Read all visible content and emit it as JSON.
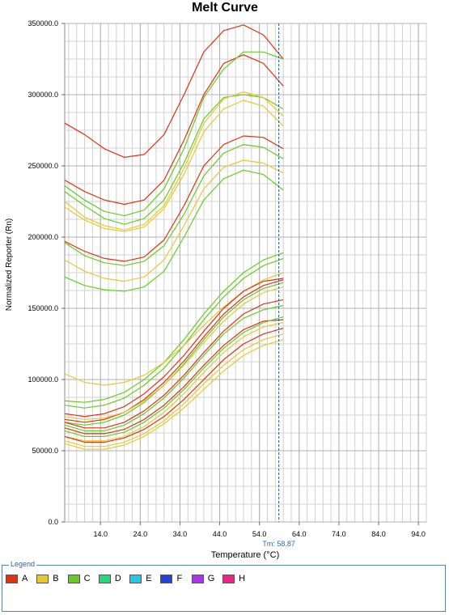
{
  "chart_data": {
    "type": "line",
    "title": "Melt Curve",
    "xlabel": "Temperature (°C)",
    "ylabel": "Normalized Reporter (Rn)",
    "xlim": [
      5.0,
      96.0
    ],
    "ylim": [
      0.0,
      350000.0
    ],
    "x_ticks": [
      "14.0",
      "24.0",
      "34.0",
      "44.0",
      "54.0",
      "64.0",
      "74.0",
      "84.0",
      "94.0"
    ],
    "x_tick_values": [
      14,
      24,
      34,
      44,
      54,
      64,
      74,
      84,
      94
    ],
    "y_ticks": [
      "0.0",
      "50000.0",
      "100000.0",
      "150000.0",
      "200000.0",
      "250000.0",
      "300000.0",
      "350000.0"
    ],
    "y_tick_values": [
      0,
      50000,
      100000,
      150000,
      200000,
      250000,
      300000,
      350000
    ],
    "grid": true,
    "marker_label": "Tm: 58.87",
    "marker_x": 58.87,
    "series": [
      {
        "color": "#dd3311",
        "x": [
          5,
          10,
          15,
          20,
          25,
          30,
          35,
          40,
          45,
          50,
          55,
          60
        ],
        "y": [
          280000,
          272000,
          262000,
          256000,
          258000,
          272000,
          300000,
          330000,
          345000,
          349000,
          342000,
          325000
        ]
      },
      {
        "color": "#dd3311",
        "x": [
          5,
          10,
          15,
          20,
          25,
          30,
          35,
          40,
          45,
          50,
          55,
          60
        ],
        "y": [
          240000,
          232000,
          226000,
          223000,
          226000,
          240000,
          268000,
          300000,
          322000,
          328000,
          322000,
          306000
        ]
      },
      {
        "color": "#66cc22",
        "x": [
          5,
          10,
          15,
          20,
          25,
          30,
          35,
          40,
          45,
          50,
          55,
          60
        ],
        "y": [
          236000,
          226000,
          218000,
          215000,
          219000,
          234000,
          262000,
          298000,
          318000,
          330000,
          330000,
          325000
        ]
      },
      {
        "color": "#66cc22",
        "x": [
          5,
          10,
          15,
          20,
          25,
          30,
          35,
          40,
          45,
          50,
          55,
          60
        ],
        "y": [
          232000,
          222000,
          213000,
          209000,
          213000,
          226000,
          252000,
          283000,
          298000,
          300000,
          298000,
          290000
        ]
      },
      {
        "color": "#e8c830",
        "x": [
          5,
          10,
          15,
          20,
          25,
          30,
          35,
          40,
          45,
          50,
          55,
          60
        ],
        "y": [
          225000,
          214000,
          208000,
          205000,
          209000,
          222000,
          248000,
          280000,
          297000,
          302000,
          298000,
          285000
        ]
      },
      {
        "color": "#e8c830",
        "x": [
          5,
          10,
          15,
          20,
          25,
          30,
          35,
          40,
          45,
          50,
          55,
          60
        ],
        "y": [
          221000,
          212000,
          206000,
          204000,
          207000,
          220000,
          244000,
          274000,
          290000,
          296000,
          292000,
          278000
        ]
      },
      {
        "color": "#dd3311",
        "x": [
          5,
          10,
          15,
          20,
          25,
          30,
          35,
          40,
          45,
          50,
          55,
          60
        ],
        "y": [
          197000,
          190000,
          185000,
          183000,
          186000,
          198000,
          222000,
          250000,
          265000,
          271000,
          270000,
          262000
        ]
      },
      {
        "color": "#66cc22",
        "x": [
          5,
          10,
          15,
          20,
          25,
          30,
          35,
          40,
          45,
          50,
          55,
          60
        ],
        "y": [
          196000,
          187000,
          182000,
          180000,
          183000,
          194000,
          216000,
          243000,
          259000,
          265000,
          263000,
          255000
        ]
      },
      {
        "color": "#e8c830",
        "x": [
          5,
          10,
          15,
          20,
          25,
          30,
          35,
          40,
          45,
          50,
          55,
          60
        ],
        "y": [
          184000,
          176000,
          171000,
          169000,
          172000,
          184000,
          208000,
          234000,
          249000,
          254000,
          252000,
          245000
        ]
      },
      {
        "color": "#66cc22",
        "x": [
          5,
          10,
          15,
          20,
          25,
          30,
          35,
          40,
          45,
          50,
          55,
          60
        ],
        "y": [
          172000,
          166000,
          163000,
          162000,
          165000,
          176000,
          200000,
          226000,
          241000,
          247000,
          244000,
          233000
        ]
      },
      {
        "color": "#66cc22",
        "x": [
          5,
          10,
          15,
          20,
          25,
          30,
          35,
          40,
          45,
          50,
          55,
          60
        ],
        "y": [
          85000,
          84000,
          86000,
          91000,
          100000,
          112000,
          128000,
          146000,
          162000,
          175000,
          184000,
          189000
        ]
      },
      {
        "color": "#66cc22",
        "x": [
          5,
          10,
          15,
          20,
          25,
          30,
          35,
          40,
          45,
          50,
          55,
          60
        ],
        "y": [
          82000,
          80000,
          82000,
          87000,
          96000,
          108000,
          124000,
          142000,
          158000,
          171000,
          180000,
          185000
        ]
      },
      {
        "color": "#e8c830",
        "x": [
          5,
          10,
          15,
          20,
          25,
          30,
          35,
          40,
          45,
          50,
          55,
          60
        ],
        "y": [
          104000,
          98000,
          96000,
          98000,
          103000,
          112000,
          124000,
          138000,
          151000,
          162000,
          170000,
          175000
        ]
      },
      {
        "color": "#dd3311",
        "x": [
          5,
          10,
          15,
          20,
          25,
          30,
          35,
          40,
          45,
          50,
          55,
          60
        ],
        "y": [
          76000,
          74000,
          76000,
          81000,
          90000,
          102000,
          117000,
          134000,
          150000,
          162000,
          169000,
          171000
        ]
      },
      {
        "color": "#dd3311",
        "x": [
          5,
          10,
          15,
          20,
          25,
          30,
          35,
          40,
          45,
          50,
          55,
          60
        ],
        "y": [
          72000,
          70000,
          72000,
          77000,
          86000,
          98000,
          113000,
          130000,
          146000,
          158000,
          166000,
          170000
        ]
      },
      {
        "color": "#66cc22",
        "x": [
          5,
          10,
          15,
          20,
          25,
          30,
          35,
          40,
          45,
          50,
          55,
          60
        ],
        "y": [
          70000,
          68000,
          70000,
          75000,
          84000,
          96000,
          111000,
          128000,
          144000,
          156000,
          164000,
          168000
        ]
      },
      {
        "color": "#e8c830",
        "x": [
          5,
          10,
          15,
          20,
          25,
          30,
          35,
          40,
          45,
          50,
          55,
          60
        ],
        "y": [
          74000,
          72000,
          73000,
          77000,
          85000,
          96000,
          110000,
          126000,
          141000,
          153000,
          161000,
          165000
        ]
      },
      {
        "color": "#dd3311",
        "x": [
          5,
          10,
          15,
          20,
          25,
          30,
          35,
          40,
          45,
          50,
          55,
          60
        ],
        "y": [
          70000,
          66000,
          66000,
          70000,
          78000,
          89000,
          103000,
          119000,
          134000,
          146000,
          153000,
          156000
        ]
      },
      {
        "color": "#66cc22",
        "x": [
          5,
          10,
          15,
          20,
          25,
          30,
          35,
          40,
          45,
          50,
          55,
          60
        ],
        "y": [
          68000,
          64000,
          64000,
          68000,
          76000,
          87000,
          101000,
          117000,
          132000,
          143000,
          149000,
          152000
        ]
      },
      {
        "color": "#dd3311",
        "x": [
          5,
          10,
          15,
          20,
          25,
          30,
          35,
          40,
          45,
          50,
          55,
          60
        ],
        "y": [
          66000,
          62000,
          62000,
          65000,
          72000,
          82000,
          95000,
          110000,
          124000,
          135000,
          141000,
          142000
        ]
      },
      {
        "color": "#66cc22",
        "x": [
          5,
          10,
          15,
          20,
          25,
          30,
          35,
          40,
          45,
          50,
          55,
          60
        ],
        "y": [
          64000,
          60000,
          60000,
          63000,
          70000,
          80000,
          93000,
          108000,
          122000,
          133000,
          140000,
          144000
        ]
      },
      {
        "color": "#e8c830",
        "x": [
          5,
          10,
          15,
          20,
          25,
          30,
          35,
          40,
          45,
          50,
          55,
          60
        ],
        "y": [
          60000,
          57000,
          57000,
          60000,
          67000,
          77000,
          90000,
          105000,
          119000,
          130000,
          137000,
          140000
        ]
      },
      {
        "color": "#dd3311",
        "x": [
          5,
          10,
          15,
          20,
          25,
          30,
          35,
          40,
          45,
          50,
          55,
          60
        ],
        "y": [
          60000,
          56000,
          56000,
          59000,
          65000,
          74000,
          86000,
          100000,
          114000,
          125000,
          132000,
          136000
        ]
      },
      {
        "color": "#e8c830",
        "x": [
          5,
          10,
          15,
          20,
          25,
          30,
          35,
          40,
          45,
          50,
          55,
          60
        ],
        "y": [
          57000,
          53000,
          53000,
          56000,
          62000,
          71000,
          83000,
          97000,
          110000,
          121000,
          128000,
          132000
        ]
      },
      {
        "color": "#e8c830",
        "x": [
          5,
          10,
          15,
          20,
          25,
          30,
          35,
          40,
          45,
          50,
          55,
          60
        ],
        "y": [
          55000,
          51000,
          51000,
          54000,
          60000,
          69000,
          80000,
          93000,
          106000,
          117000,
          124000,
          128000
        ]
      }
    ]
  },
  "legend": {
    "title": "Legend",
    "items": [
      {
        "label": "A",
        "color": "#dd3311"
      },
      {
        "label": "B",
        "color": "#e8c830"
      },
      {
        "label": "C",
        "color": "#66cc22"
      },
      {
        "label": "D",
        "color": "#22dd77"
      },
      {
        "label": "E",
        "color": "#22c8e8"
      },
      {
        "label": "F",
        "color": "#2244dd"
      },
      {
        "label": "G",
        "color": "#aa33ee"
      },
      {
        "label": "H",
        "color": "#ee2288"
      }
    ]
  }
}
